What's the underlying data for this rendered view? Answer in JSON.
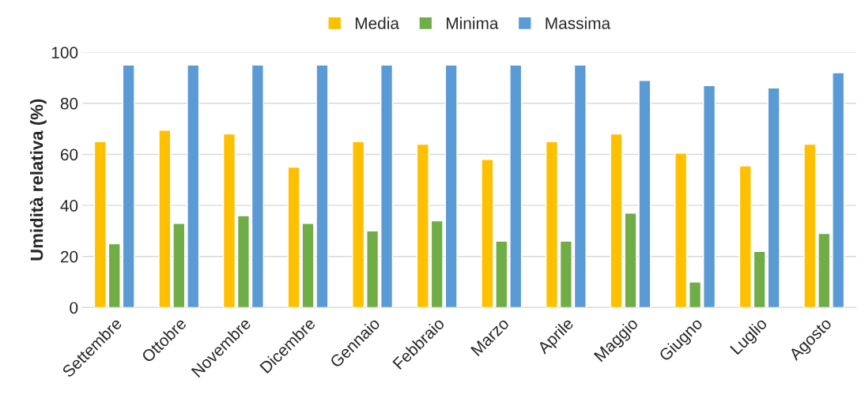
{
  "chart_data": {
    "type": "bar",
    "ylabel": "Umidità relativa (%)",
    "categories": [
      "Settembre",
      "Ottobre",
      "Novembre",
      "Dicembre",
      "Gennaio",
      "Febbraio",
      "Marzo",
      "Aprile",
      "Maggio",
      "Giugno",
      "Luglio",
      "Agosto"
    ],
    "series": [
      {
        "name": "Media",
        "color": "#ffc000",
        "values": [
          65,
          69.5,
          68,
          55,
          65,
          64,
          58,
          65,
          68,
          60.5,
          55.5,
          64
        ]
      },
      {
        "name": "Minima",
        "color": "#70ad47",
        "values": [
          25,
          33,
          36,
          33,
          30,
          34,
          26,
          26,
          37,
          10,
          22,
          29
        ]
      },
      {
        "name": "Massima",
        "color": "#5b9bd5",
        "values": [
          95,
          95,
          95,
          95,
          95,
          95,
          95,
          95,
          89,
          87,
          86,
          92
        ]
      }
    ],
    "ylim": [
      0,
      100
    ],
    "yticks": [
      0,
      20,
      40,
      60,
      80,
      100
    ],
    "grid": "y",
    "legend": "top"
  }
}
